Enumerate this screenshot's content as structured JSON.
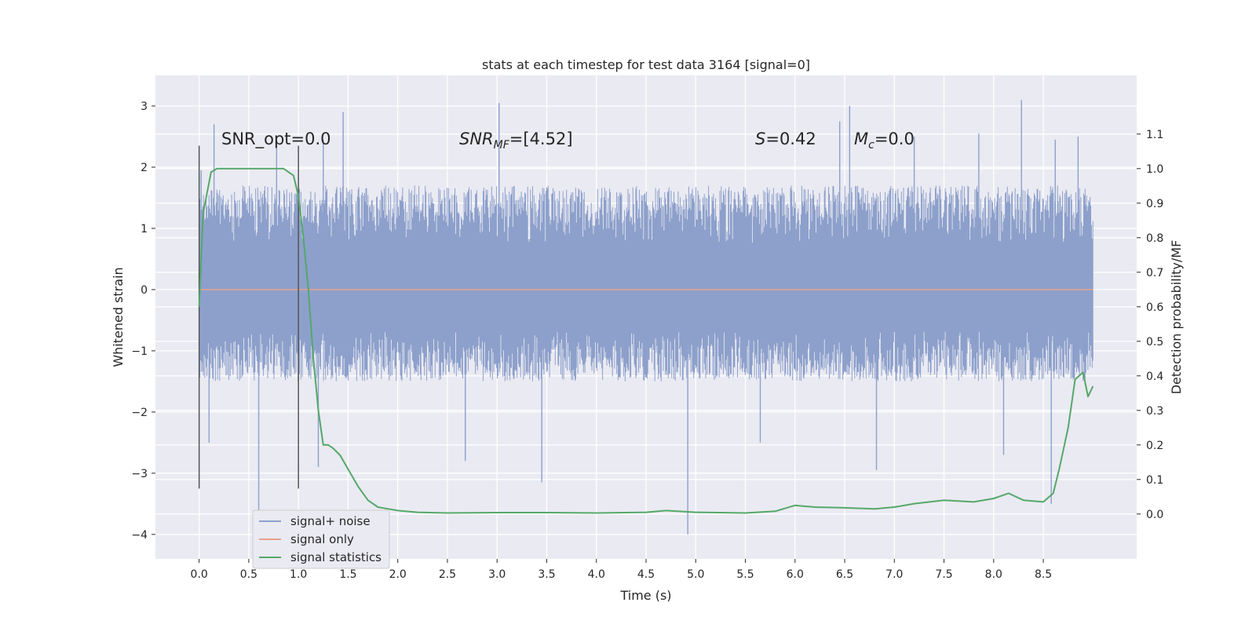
{
  "chart_data": {
    "type": "line",
    "title": "stats at each timestep for test data 3164 [signal=0]",
    "xlabel": "Time (s)",
    "ylabel": "Whitened strain",
    "y2label": "Detection probability/MF",
    "xlim": [
      -0.44,
      9.44
    ],
    "ylim": [
      -4.4,
      3.5
    ],
    "y2lim": [
      -0.13,
      1.27
    ],
    "x_ticks": [
      0.0,
      0.5,
      1.0,
      1.5,
      2.0,
      2.5,
      3.0,
      3.5,
      4.0,
      4.5,
      5.0,
      5.5,
      6.0,
      6.5,
      7.0,
      7.5,
      8.0,
      8.5
    ],
    "x_tick_labels": [
      "0.0",
      "0.5",
      "1.0",
      "1.5",
      "2.0",
      "2.5",
      "3.0",
      "3.5",
      "4.0",
      "4.5",
      "5.0",
      "5.5",
      "6.0",
      "6.5",
      "7.0",
      "7.5",
      "8.0",
      "8.5"
    ],
    "y_ticks": [
      -4,
      -3,
      -2,
      -1,
      0,
      1,
      2,
      3
    ],
    "y_tick_labels": [
      "−4",
      "−3",
      "−2",
      "−1",
      "0",
      "1",
      "2",
      "3"
    ],
    "y2_ticks": [
      0.0,
      0.1,
      0.2,
      0.3,
      0.4,
      0.5,
      0.6,
      0.7,
      0.8,
      0.9,
      1.0,
      1.1
    ],
    "y2_tick_labels": [
      "0.0",
      "0.1",
      "0.2",
      "0.3",
      "0.4",
      "0.5",
      "0.6",
      "0.7",
      "0.8",
      "0.9",
      "1.0",
      "1.1"
    ],
    "grid": true,
    "legend_position": "lower-left",
    "annotations": {
      "snr_opt": "SNR_opt=0.0",
      "snr_mf_main": "SNR",
      "snr_mf_sub": "MF",
      "snr_mf_rest": "=[4.52]",
      "s_main": "S",
      "s_rest": "=0.42",
      "mc_main": "M",
      "mc_sub": "c",
      "mc_rest": "=0.0"
    },
    "vertical_markers": [
      {
        "x": 0.0,
        "y_range": [
          -3.25,
          2.35
        ]
      },
      {
        "x": 1.0,
        "y_range": [
          -3.25,
          2.35
        ]
      }
    ],
    "series": [
      {
        "name": "signal+ noise",
        "color": "#8da0cb",
        "axis": "left",
        "x_range": [
          0.0,
          9.0
        ],
        "envelope": {
          "typical_max": 1.7,
          "typical_min": -1.5,
          "spikes": [
            {
              "x": 0.02,
              "y": 1.95
            },
            {
              "x": 0.1,
              "y": -2.5
            },
            {
              "x": 0.15,
              "y": 2.7
            },
            {
              "x": 0.6,
              "y": -3.65
            },
            {
              "x": 0.78,
              "y": 2.45
            },
            {
              "x": 1.2,
              "y": -2.9
            },
            {
              "x": 1.25,
              "y": 2.45
            },
            {
              "x": 1.45,
              "y": 2.9
            },
            {
              "x": 2.68,
              "y": -2.8
            },
            {
              "x": 3.02,
              "y": 3.05
            },
            {
              "x": 3.45,
              "y": -3.15
            },
            {
              "x": 4.92,
              "y": -4.0
            },
            {
              "x": 5.65,
              "y": -2.5
            },
            {
              "x": 6.45,
              "y": 2.75
            },
            {
              "x": 6.55,
              "y": 3.0
            },
            {
              "x": 6.82,
              "y": -2.95
            },
            {
              "x": 7.2,
              "y": 2.5
            },
            {
              "x": 7.85,
              "y": 2.55
            },
            {
              "x": 8.1,
              "y": -2.7
            },
            {
              "x": 8.28,
              "y": 3.1
            },
            {
              "x": 8.58,
              "y": -3.5
            },
            {
              "x": 8.62,
              "y": 2.45
            },
            {
              "x": 8.85,
              "y": 2.5
            }
          ]
        }
      },
      {
        "name": "signal only",
        "color": "#e5a28a",
        "axis": "left",
        "x": [
          0.0,
          9.0
        ],
        "y": [
          0.0,
          0.0
        ]
      },
      {
        "name": "signal statistics",
        "color": "#55a868",
        "axis": "right",
        "x": [
          0.0,
          0.04,
          0.08,
          0.12,
          0.18,
          0.25,
          0.4,
          0.6,
          0.85,
          0.95,
          1.0,
          1.05,
          1.1,
          1.15,
          1.2,
          1.25,
          1.3,
          1.35,
          1.42,
          1.5,
          1.6,
          1.7,
          1.8,
          1.9,
          2.0,
          2.2,
          2.5,
          3.0,
          3.5,
          4.0,
          4.5,
          4.7,
          5.0,
          5.5,
          5.8,
          6.0,
          6.2,
          6.5,
          6.8,
          7.0,
          7.2,
          7.5,
          7.8,
          8.0,
          8.15,
          8.3,
          8.5,
          8.6,
          8.66,
          8.75,
          8.82,
          8.9,
          8.95,
          9.0
        ],
        "y": [
          0.6,
          0.87,
          0.93,
          0.99,
          1.0,
          1.0,
          1.0,
          1.0,
          1.0,
          0.98,
          0.92,
          0.8,
          0.65,
          0.45,
          0.3,
          0.2,
          0.2,
          0.19,
          0.17,
          0.13,
          0.08,
          0.04,
          0.02,
          0.015,
          0.01,
          0.005,
          0.003,
          0.004,
          0.004,
          0.003,
          0.005,
          0.01,
          0.005,
          0.003,
          0.008,
          0.025,
          0.02,
          0.018,
          0.015,
          0.02,
          0.03,
          0.04,
          0.035,
          0.045,
          0.06,
          0.04,
          0.035,
          0.06,
          0.13,
          0.25,
          0.39,
          0.41,
          0.34,
          0.37
        ]
      }
    ]
  }
}
